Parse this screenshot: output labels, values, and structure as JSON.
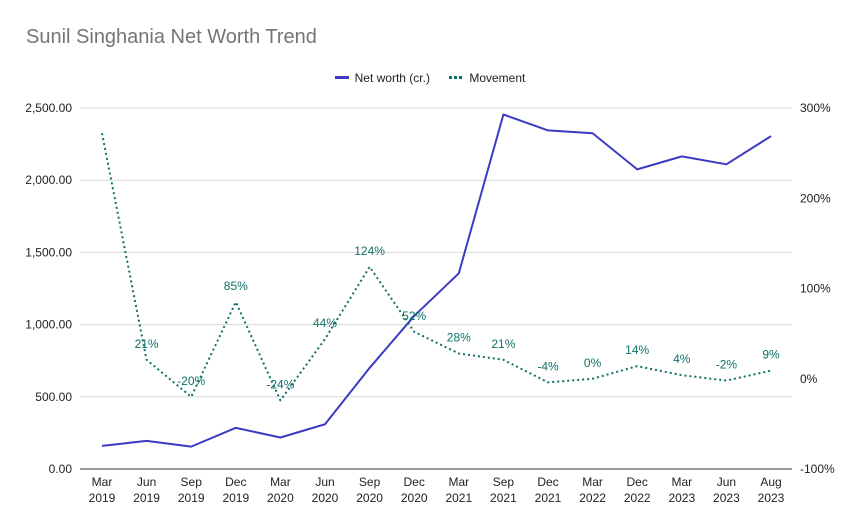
{
  "chart_data": {
    "type": "line",
    "title": "Sunil Singhania Net Worth Trend",
    "categories": [
      [
        "Mar",
        "2019"
      ],
      [
        "Jun",
        "2019"
      ],
      [
        "Sep",
        "2019"
      ],
      [
        "Dec",
        "2019"
      ],
      [
        "Mar",
        "2020"
      ],
      [
        "Jun",
        "2020"
      ],
      [
        "Sep",
        "2020"
      ],
      [
        "Dec",
        "2020"
      ],
      [
        "Mar",
        "2021"
      ],
      [
        "Sep",
        "2021"
      ],
      [
        "Dec",
        "2021"
      ],
      [
        "Mar",
        "2022"
      ],
      [
        "Dec",
        "2022"
      ],
      [
        "Mar",
        "2023"
      ],
      [
        "Jun",
        "2023"
      ],
      [
        "Aug",
        "2023"
      ]
    ],
    "series": [
      {
        "name": "Net worth (cr.)",
        "axis": "left",
        "color": "#3b3bc4",
        "style": "solid",
        "values": [
          160,
          195,
          155,
          285,
          218,
          310,
          700,
          1060,
          1355,
          2455,
          2345,
          2325,
          2075,
          2165,
          2110,
          2305
        ]
      },
      {
        "name": "Movement",
        "axis": "right",
        "color": "#0e7068",
        "style": "dotted",
        "values": [
          272,
          21,
          -20,
          85,
          -24,
          44,
          124,
          52,
          28,
          21,
          -4,
          0,
          14,
          4,
          -2,
          9
        ],
        "labels": [
          null,
          "21%",
          "-20%",
          "85%",
          "-24%",
          "44%",
          "124%",
          "52%",
          "28%",
          "21%",
          "-4%",
          "0%",
          "14%",
          "4%",
          "-2%",
          "9%"
        ]
      }
    ],
    "y_left": {
      "min": 0,
      "max": 2500,
      "ticks": [
        "0.00",
        "500.00",
        "1,000.00",
        "1,500.00",
        "2,000.00",
        "2,500.00"
      ],
      "tick_values": [
        0,
        500,
        1000,
        1500,
        2000,
        2500
      ]
    },
    "y_right": {
      "min": -100,
      "max": 300,
      "ticks": [
        "-100%",
        "0%",
        "100%",
        "200%",
        "300%"
      ],
      "tick_values": [
        -100,
        0,
        100,
        200,
        300
      ]
    },
    "grid": true,
    "legend_position": "top-center"
  }
}
